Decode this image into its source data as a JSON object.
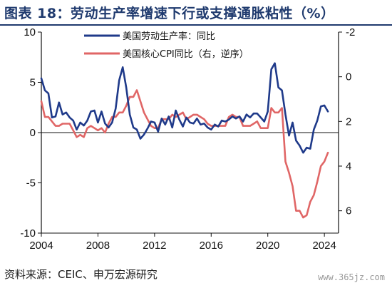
{
  "header": {
    "title": "图表 18：劳动生产率增速下行或支撑通胀粘性（%）"
  },
  "footer": {
    "source": "资料来源：CEIC、申万宏源研究",
    "watermark": "www.365jz.com"
  },
  "colors": {
    "productivity": "#1f3a8a",
    "cpi": "#e06666",
    "title": "#1f3a6e"
  },
  "chart_data": {
    "type": "line",
    "title": "图表 18：劳动生产率增速下行或支撑通胀粘性（%）",
    "x_ticks": [
      "2004",
      "2008",
      "2012",
      "2016",
      "2020",
      "2024"
    ],
    "xlim": [
      2004,
      2025
    ],
    "left_axis": {
      "ticks": [
        "10",
        "5",
        "0",
        "-5",
        "-10"
      ],
      "ylim": [
        -10,
        10
      ]
    },
    "right_axis": {
      "ticks": [
        "-2",
        "0",
        "2",
        "4",
        "6"
      ],
      "ylim": [
        -2,
        7
      ],
      "inverted": true
    },
    "legend_position": "top-center",
    "series": [
      {
        "name": "美国劳动生产率：同比",
        "axis": "left",
        "color": "#1f3a8a",
        "x": [
          2004.0,
          2004.25,
          2004.5,
          2004.75,
          2005.0,
          2005.25,
          2005.5,
          2005.75,
          2006.0,
          2006.25,
          2006.5,
          2006.75,
          2007.0,
          2007.25,
          2007.5,
          2007.75,
          2008.0,
          2008.25,
          2008.5,
          2008.75,
          2009.0,
          2009.25,
          2009.5,
          2009.75,
          2010.0,
          2010.25,
          2010.5,
          2010.75,
          2011.0,
          2011.25,
          2011.5,
          2011.75,
          2012.0,
          2012.25,
          2012.5,
          2012.75,
          2013.0,
          2013.25,
          2013.5,
          2013.75,
          2014.0,
          2014.25,
          2014.5,
          2014.75,
          2015.0,
          2015.25,
          2015.5,
          2015.75,
          2016.0,
          2016.25,
          2016.5,
          2016.75,
          2017.0,
          2017.25,
          2017.5,
          2017.75,
          2018.0,
          2018.25,
          2018.5,
          2018.75,
          2019.0,
          2019.25,
          2019.5,
          2019.75,
          2020.0,
          2020.25,
          2020.5,
          2020.75,
          2021.0,
          2021.25,
          2021.5,
          2021.75,
          2022.0,
          2022.25,
          2022.5,
          2022.75,
          2023.0,
          2023.25,
          2023.5,
          2023.75,
          2024.0,
          2024.25
        ],
        "values": [
          5.4,
          4.2,
          3.9,
          1.5,
          1.6,
          3.0,
          1.8,
          2.0,
          1.5,
          1.2,
          0.3,
          1.0,
          0.7,
          1.2,
          2.1,
          2.2,
          1.0,
          2.1,
          0.9,
          0.5,
          1.0,
          2.4,
          5.2,
          6.5,
          4.5,
          1.8,
          0.5,
          0.3,
          -0.6,
          -0.2,
          0.4,
          1.1,
          1.0,
          0.1,
          1.4,
          0.8,
          1.6,
          0.5,
          2.2,
          1.3,
          0.6,
          1.5,
          1.0,
          0.9,
          1.4,
          0.8,
          0.9,
          0.5,
          0.3,
          0.8,
          0.6,
          1.2,
          1.1,
          1.3,
          1.6,
          1.4,
          1.6,
          1.1,
          1.8,
          1.5,
          1.9,
          1.9,
          1.5,
          1.1,
          2.1,
          6.3,
          6.9,
          4.5,
          4.2,
          1.8,
          -0.3,
          1.0,
          -0.8,
          -1.3,
          -2.0,
          -1.5,
          -1.6,
          0.3,
          1.2,
          2.6,
          2.7,
          2.1
        ]
      },
      {
        "name": "美国核心CPI同比（右，逆序）",
        "axis": "right",
        "color": "#e06666",
        "x": [
          2004.0,
          2004.25,
          2004.5,
          2004.75,
          2005.0,
          2005.25,
          2005.5,
          2005.75,
          2006.0,
          2006.25,
          2006.5,
          2006.75,
          2007.0,
          2007.25,
          2007.5,
          2007.75,
          2008.0,
          2008.25,
          2008.5,
          2008.75,
          2009.0,
          2009.25,
          2009.5,
          2009.75,
          2010.0,
          2010.25,
          2010.5,
          2010.75,
          2011.0,
          2011.25,
          2011.5,
          2011.75,
          2012.0,
          2012.25,
          2012.5,
          2012.75,
          2013.0,
          2013.25,
          2013.5,
          2013.75,
          2014.0,
          2014.25,
          2014.5,
          2014.75,
          2015.0,
          2015.25,
          2015.5,
          2015.75,
          2016.0,
          2016.25,
          2016.5,
          2016.75,
          2017.0,
          2017.25,
          2017.5,
          2017.75,
          2018.0,
          2018.25,
          2018.5,
          2018.75,
          2019.0,
          2019.25,
          2019.5,
          2019.75,
          2020.0,
          2020.25,
          2020.5,
          2020.75,
          2021.0,
          2021.25,
          2021.5,
          2021.75,
          2022.0,
          2022.25,
          2022.5,
          2022.75,
          2023.0,
          2023.25,
          2023.5,
          2023.75,
          2024.0,
          2024.25
        ],
        "values": [
          1.1,
          1.8,
          1.8,
          2.0,
          2.2,
          2.2,
          2.1,
          2.1,
          2.1,
          2.4,
          2.7,
          2.6,
          2.7,
          2.3,
          2.2,
          2.3,
          2.4,
          2.3,
          2.5,
          2.1,
          1.8,
          1.8,
          1.6,
          1.6,
          1.3,
          0.9,
          0.9,
          0.6,
          1.1,
          1.6,
          1.9,
          2.2,
          2.3,
          2.3,
          1.9,
          1.9,
          1.9,
          1.7,
          1.8,
          1.7,
          1.6,
          1.9,
          1.8,
          1.7,
          1.7,
          1.8,
          1.9,
          2.1,
          2.2,
          2.2,
          2.2,
          2.2,
          2.2,
          1.8,
          1.7,
          1.8,
          1.8,
          2.2,
          2.2,
          2.2,
          2.1,
          2.0,
          2.3,
          2.3,
          2.3,
          1.4,
          1.6,
          1.6,
          1.4,
          3.8,
          4.3,
          4.9,
          6.0,
          6.0,
          6.3,
          6.2,
          5.6,
          5.3,
          4.7,
          4.0,
          3.8,
          3.4
        ]
      }
    ]
  }
}
